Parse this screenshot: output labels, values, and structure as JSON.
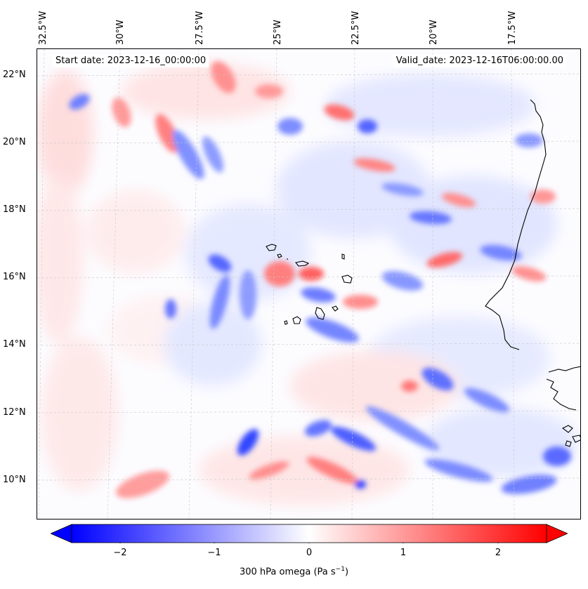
{
  "map": {
    "start_label": "Start date: 2023-12-16_00:00:00",
    "valid_label": "Valid_date: 2023-12-16T06:00:00.00",
    "lon_labels": [
      "32.5°W",
      "30°W",
      "27.5°W",
      "25°W",
      "22.5°W",
      "20°W",
      "17.5°W"
    ],
    "lat_labels": [
      "22°N",
      "20°N",
      "18°N",
      "16°N",
      "14°N",
      "12°N",
      "10°N"
    ],
    "lon_extent": [
      -33.3,
      -15.6
    ],
    "lat_extent": [
      8.9,
      22.7
    ],
    "variable": "300 hPa omega",
    "colormap": "bwr",
    "coastline_color": "#000000",
    "gridlines": true
  },
  "colorbar": {
    "label_prefix": "300 hPa omega (Pa s",
    "label_exp": "−1",
    "label_suffix": ")",
    "ticks": [
      "−2",
      "−1",
      "0",
      "1",
      "2"
    ],
    "range": [
      -2.7,
      2.7
    ],
    "extend": "both",
    "low_color": "#0000ff",
    "mid_color": "#ffffff",
    "high_color": "#ff0000"
  }
}
